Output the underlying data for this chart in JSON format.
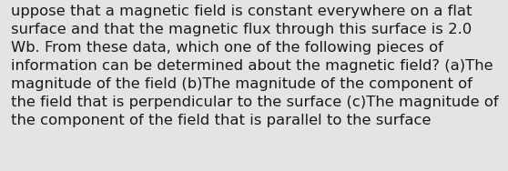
{
  "lines": [
    "uppose that a magnetic field is constant everywhere on a flat",
    "surface and that the magnetic flux through this surface is 2.0",
    "Wb. From these data, which one of the following pieces of",
    "information can be determined about the magnetic field? (a)The",
    "magnitude of the field (b)The magnitude of the component of",
    "the field that is perpendicular to the surface (c)The magnitude of",
    "the component of the field that is parallel to the surface"
  ],
  "background_color": "#e4e4e4",
  "text_color": "#1a1a1a",
  "font_size": 11.8,
  "fig_width": 5.58,
  "fig_height": 1.88,
  "dpi": 100
}
